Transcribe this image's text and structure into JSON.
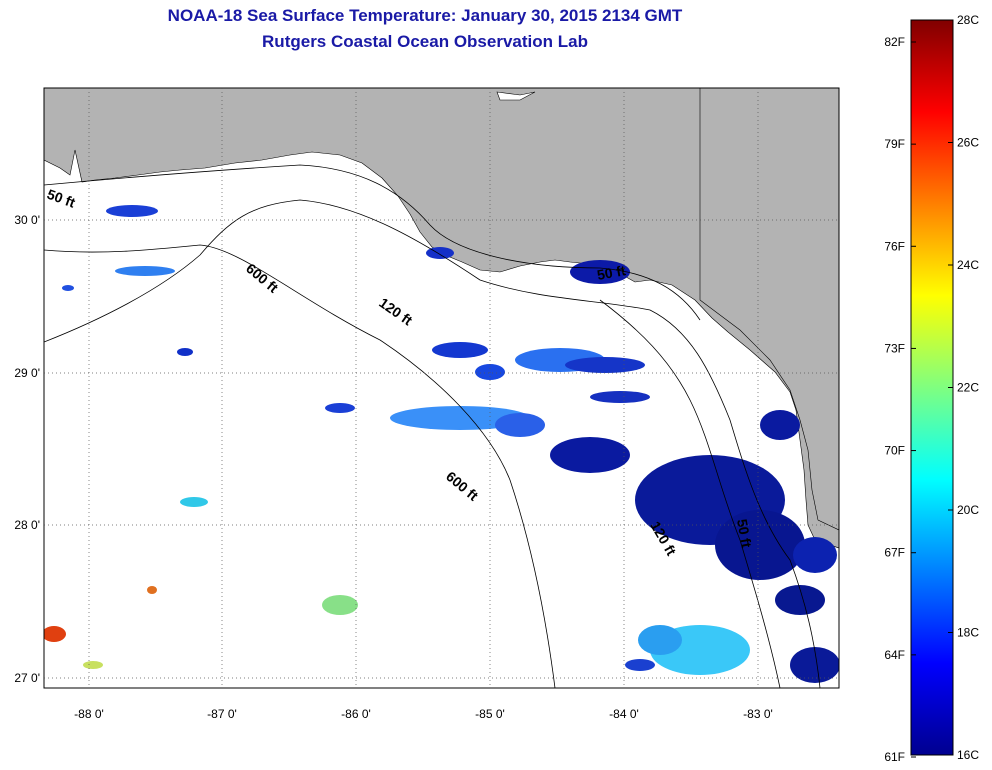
{
  "title": "NOAA-18 Sea Surface Temperature:  January 30, 2015 2134 GMT",
  "subtitle": "Rutgers Coastal Ocean Observation Lab",
  "colors": {
    "land": "#b3b3b3",
    "ocean": "#ffffff",
    "title": "#1a1aa6"
  },
  "map": {
    "lat_ticks": [
      "30 0'",
      "29 0'",
      "28 0'",
      "27 0'"
    ],
    "lon_ticks": [
      "-88 0'",
      "-87 0'",
      "-86 0'",
      "-85 0'",
      "-84 0'",
      "-83 0'"
    ],
    "contours": [
      {
        "label": "50 ft"
      },
      {
        "label": "600 ft"
      },
      {
        "label": "120 ft"
      },
      {
        "label": "50 ft"
      },
      {
        "label": "600 ft"
      },
      {
        "label": "120 ft"
      },
      {
        "label": "50 ft"
      }
    ]
  },
  "colorbar": {
    "celsius_labels": [
      "28C",
      "26C",
      "24C",
      "22C",
      "20C",
      "18C",
      "16C"
    ],
    "fahrenheit_labels": [
      "82F",
      "79F",
      "76F",
      "73F",
      "70F",
      "67F",
      "64F",
      "61F"
    ],
    "range_c": [
      16,
      28
    ]
  }
}
